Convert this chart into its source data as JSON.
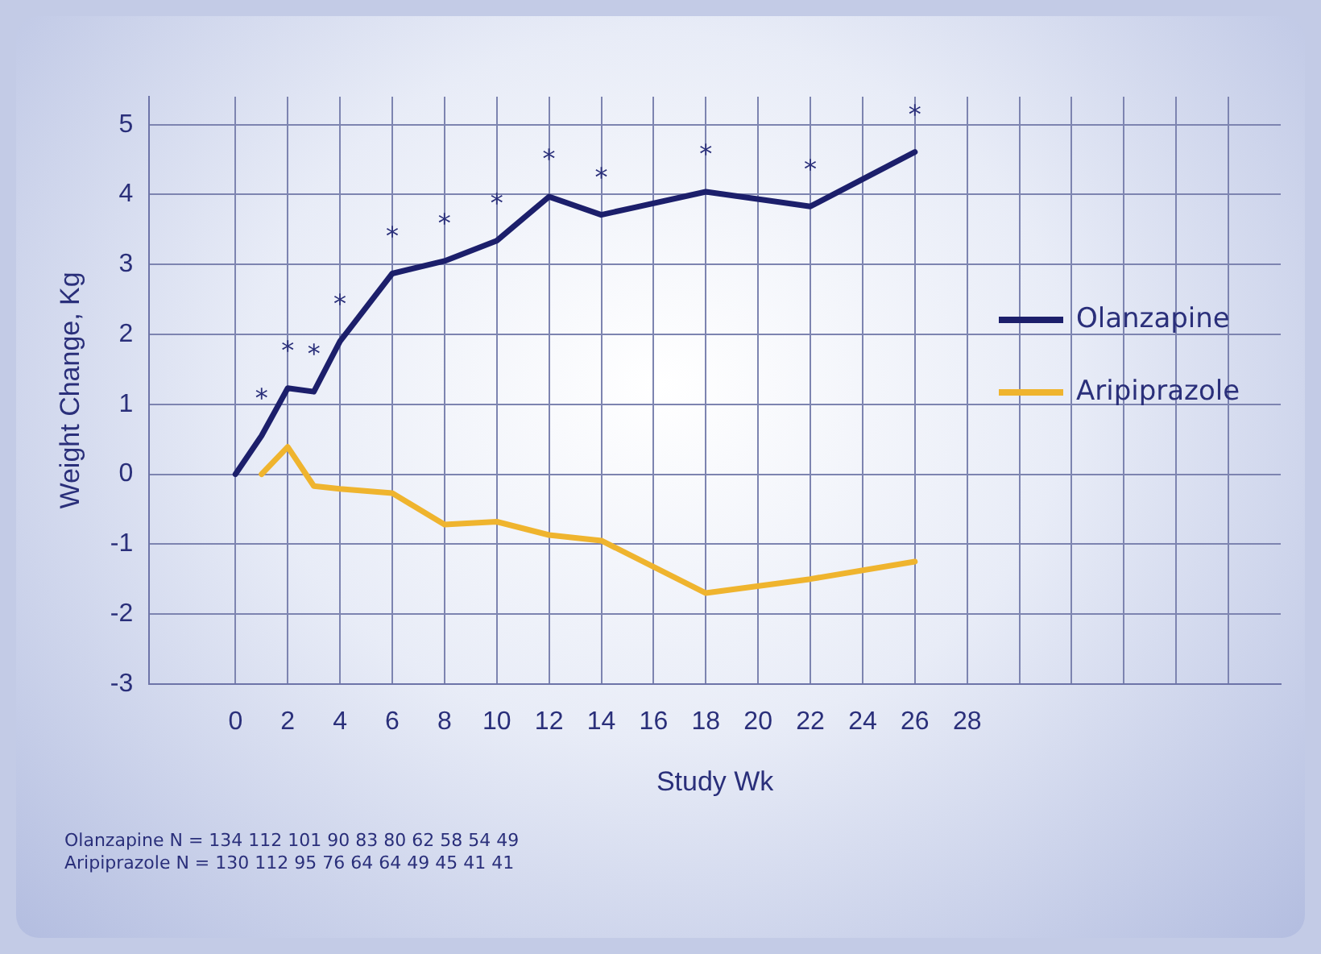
{
  "chart_data": {
    "type": "line",
    "xlabel": "Study Wk",
    "ylabel": "Weight Change, Kg",
    "xlim": [
      -3.3,
      40
    ],
    "ylim": [
      -3,
      5.4
    ],
    "xticks": [
      0,
      2,
      4,
      6,
      8,
      10,
      12,
      14,
      16,
      18,
      20,
      22,
      24,
      26,
      28,
      {
        "value": 30,
        "label": null
      },
      {
        "value": 32,
        "label": null
      },
      {
        "value": 34,
        "label": null
      },
      {
        "value": 36,
        "label": null
      },
      {
        "value": 38,
        "label": null
      }
    ],
    "yticks": [
      -3,
      -2,
      -1,
      0,
      1,
      2,
      3,
      4,
      5
    ],
    "grid": true,
    "legend": "right",
    "marker": "none",
    "line_style": "solid",
    "series": [
      {
        "name": "Olanzapine",
        "color": "#1c1f6b",
        "x": [
          0,
          1,
          2,
          3,
          4,
          6,
          8,
          10,
          12,
          14,
          18,
          22,
          26
        ],
        "values": [
          0,
          0.55,
          1.23,
          1.18,
          1.9,
          2.87,
          3.05,
          3.34,
          3.97,
          3.71,
          4.04,
          3.83,
          4.61
        ]
      },
      {
        "name": "Aripiprazole",
        "color": "#efb42e",
        "x": [
          1,
          2,
          3,
          4,
          6,
          8,
          10,
          12,
          14,
          18,
          22,
          26
        ],
        "values": [
          0,
          0.39,
          -0.17,
          -0.21,
          -0.27,
          -0.72,
          -0.68,
          -0.87,
          -0.95,
          -1.7,
          -1.5,
          -1.25
        ]
      }
    ],
    "annotations": [
      {
        "text": "*",
        "x": 1,
        "y": 0.55
      },
      {
        "text": "*",
        "x": 2,
        "y": 1.23
      },
      {
        "text": "*",
        "x": 3,
        "y": 1.18
      },
      {
        "text": "*",
        "x": 4,
        "y": 1.9
      },
      {
        "text": "*",
        "x": 6,
        "y": 2.87
      },
      {
        "text": "*",
        "x": 8,
        "y": 3.05
      },
      {
        "text": "*",
        "x": 10,
        "y": 3.34
      },
      {
        "text": "*",
        "x": 12,
        "y": 3.97
      },
      {
        "text": "*",
        "x": 14,
        "y": 3.71
      },
      {
        "text": "*",
        "x": 18,
        "y": 4.04
      },
      {
        "text": "*",
        "x": 22,
        "y": 3.83
      },
      {
        "text": "*",
        "x": 26,
        "y": 4.61
      },
      "Olanzapine N = 134 112 101 90 83 80 62 58 54 49",
      "Aripiprazole N = 130 112 95 76 64 64 49 45 41 41"
    ]
  }
}
